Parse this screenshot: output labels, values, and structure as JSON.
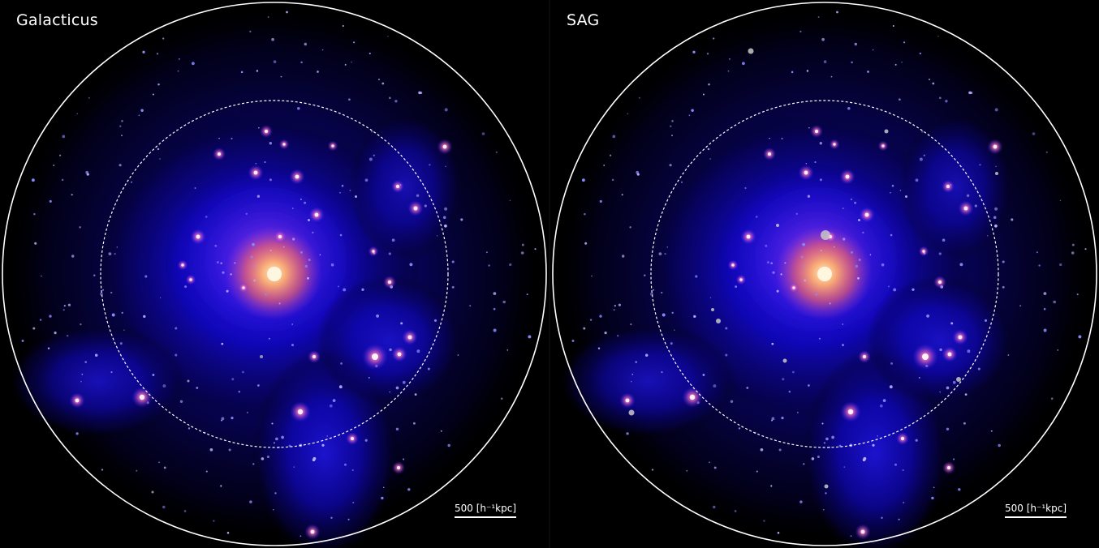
{
  "panels": [
    {
      "title": "Galacticus",
      "scale_label": "500 [h⁻¹kpc]",
      "variant": "galacticus"
    },
    {
      "title": "SAG",
      "scale_label": "500 [h⁻¹kpc]",
      "variant": "sag"
    }
  ],
  "colors": {
    "background": "#000000",
    "halo_core": "#fff0c8",
    "halo_inner": "#ff6a60",
    "halo_outer": "#1a10ff",
    "circle": "#ffffff",
    "orphan_galaxy": "#c8c8c8"
  }
}
